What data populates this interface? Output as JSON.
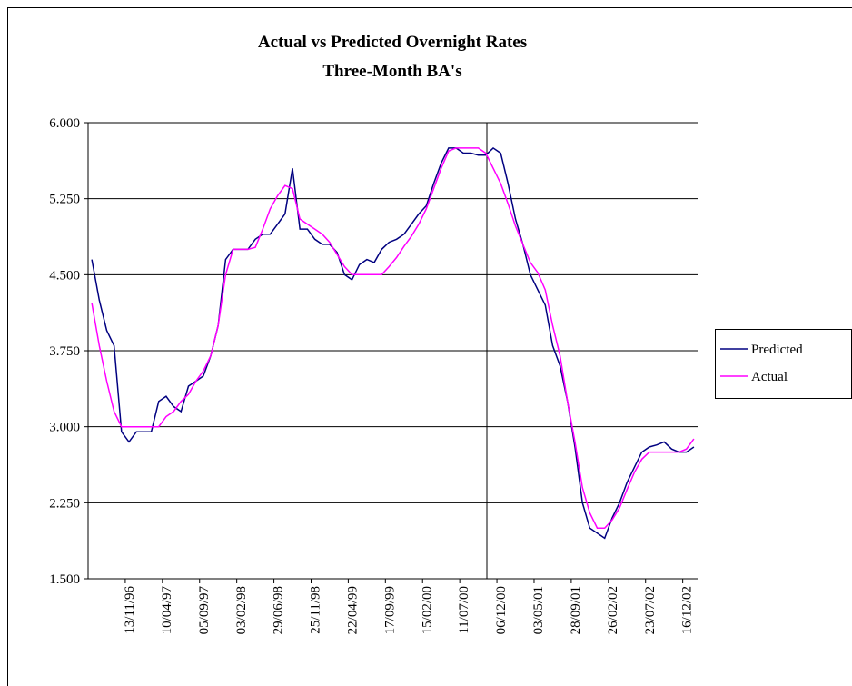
{
  "chart_data": {
    "type": "line",
    "title": "Actual vs Predicted Overnight Rates",
    "subtitle": "Three-Month BA's",
    "categories": [
      null,
      null,
      null,
      null,
      null,
      "13/11/96",
      null,
      null,
      null,
      null,
      "10/04/97",
      null,
      null,
      null,
      null,
      "05/09/97",
      null,
      null,
      null,
      null,
      "03/02/98",
      null,
      null,
      null,
      null,
      "29/06/98",
      null,
      null,
      null,
      null,
      "25/11/98",
      null,
      null,
      null,
      null,
      "22/04/99",
      null,
      null,
      null,
      null,
      "17/09/99",
      null,
      null,
      null,
      null,
      "15/02/00",
      null,
      null,
      null,
      null,
      "11/07/00",
      null,
      null,
      null,
      null,
      "06/12/00",
      null,
      null,
      null,
      null,
      "03/05/01",
      null,
      null,
      null,
      null,
      "28/09/01",
      null,
      null,
      null,
      null,
      "26/02/02",
      null,
      null,
      null,
      null,
      "23/07/02",
      null,
      null,
      null,
      null,
      "16/12/02",
      null
    ],
    "series": [
      {
        "name": "Predicted",
        "color": "#000080",
        "values": [
          4.65,
          4.25,
          3.95,
          3.8,
          2.95,
          2.85,
          2.95,
          2.95,
          2.95,
          3.25,
          3.3,
          3.2,
          3.15,
          3.4,
          3.45,
          3.5,
          3.7,
          4.0,
          4.65,
          4.75,
          4.75,
          4.75,
          4.85,
          4.9,
          4.9,
          5.0,
          5.1,
          5.55,
          4.95,
          4.95,
          4.85,
          4.8,
          4.8,
          4.72,
          4.5,
          4.45,
          4.6,
          4.65,
          4.62,
          4.75,
          4.82,
          4.85,
          4.9,
          5.0,
          5.1,
          5.18,
          5.4,
          5.6,
          5.75,
          5.75,
          5.7,
          5.7,
          5.68,
          5.68,
          5.75,
          5.7,
          5.4,
          5.05,
          4.8,
          4.5,
          4.35,
          4.2,
          3.8,
          3.6,
          3.25,
          2.8,
          2.25,
          2.0,
          1.95,
          1.9,
          2.1,
          2.25,
          2.45,
          2.6,
          2.75,
          2.8,
          2.82,
          2.85,
          2.78,
          2.75,
          2.75,
          2.8
        ]
      },
      {
        "name": "Actual",
        "color": "#ff00ff",
        "values": [
          4.22,
          3.8,
          3.45,
          3.15,
          3.0,
          3.0,
          3.0,
          3.0,
          3.0,
          3.0,
          3.1,
          3.15,
          3.25,
          3.32,
          3.45,
          3.55,
          3.7,
          4.0,
          4.5,
          4.75,
          4.75,
          4.75,
          4.77,
          4.95,
          5.15,
          5.28,
          5.38,
          5.35,
          5.05,
          5.0,
          4.95,
          4.9,
          4.82,
          4.7,
          4.58,
          4.5,
          4.5,
          4.5,
          4.5,
          4.5,
          4.58,
          4.67,
          4.78,
          4.88,
          5.0,
          5.15,
          5.35,
          5.55,
          5.72,
          5.75,
          5.75,
          5.75,
          5.75,
          5.7,
          5.55,
          5.4,
          5.2,
          4.98,
          4.8,
          4.62,
          4.52,
          4.35,
          4.0,
          3.7,
          3.25,
          2.85,
          2.4,
          2.15,
          2.0,
          2.0,
          2.08,
          2.2,
          2.38,
          2.55,
          2.68,
          2.75,
          2.75,
          2.75,
          2.75,
          2.75,
          2.78,
          2.88
        ]
      }
    ],
    "ylim": [
      1.5,
      6
    ],
    "yticks": [
      {
        "value": 1.5,
        "label": "1.500"
      },
      {
        "value": 2.25,
        "label": "2.250"
      },
      {
        "value": 3,
        "label": "3.000"
      },
      {
        "value": 3.75,
        "label": "3.750"
      },
      {
        "value": 4.5,
        "label": "4.500"
      },
      {
        "value": 5.25,
        "label": "5.250"
      },
      {
        "value": 6,
        "label": "6.000"
      }
    ],
    "grid": true,
    "legend": "right"
  }
}
